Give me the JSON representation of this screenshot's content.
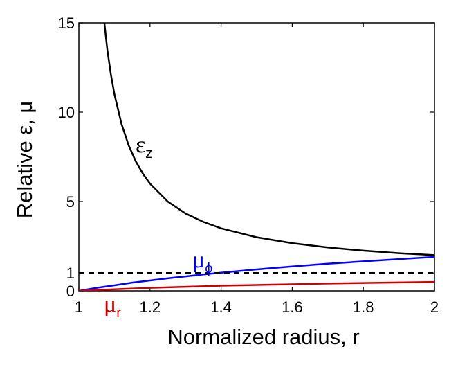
{
  "chart_data": {
    "type": "line",
    "xlabel": "Normalized radius, r",
    "ylabel": "Relative ε, μ",
    "xlim": [
      1,
      2
    ],
    "ylim": [
      0,
      15
    ],
    "x_ticks": [
      "1",
      "1.2",
      "1.4",
      "1.6",
      "1.8",
      "2"
    ],
    "x_tick_values": [
      1,
      1.2,
      1.4,
      1.6,
      1.8,
      2
    ],
    "y_ticks": [
      "0",
      "1",
      "5",
      "10",
      "15"
    ],
    "y_tick_values": [
      0,
      1,
      5,
      10,
      15
    ],
    "grid": false,
    "legend": "none",
    "series": [
      {
        "label_text": "ε",
        "label_sub": "z",
        "color": "#000000",
        "style": "solid",
        "x": [
          1.07,
          1.08,
          1.09,
          1.1,
          1.12,
          1.14,
          1.16,
          1.18,
          1.2,
          1.25,
          1.3,
          1.35,
          1.4,
          1.5,
          1.6,
          1.7,
          1.8,
          1.9,
          2.0
        ],
        "y": [
          15.3,
          13.5,
          12.1,
          11.0,
          9.33,
          8.14,
          7.25,
          6.56,
          6.0,
          5.0,
          4.33,
          3.86,
          3.5,
          3.0,
          2.67,
          2.43,
          2.25,
          2.11,
          2.0
        ]
      },
      {
        "label_text": "μ",
        "label_sub": "ϕ",
        "color": "#0000ff",
        "style": "solid",
        "x": [
          1.0,
          1.05,
          1.1,
          1.15,
          1.2,
          1.25,
          1.3,
          1.35,
          1.4,
          1.5,
          1.6,
          1.7,
          1.8,
          1.9,
          2.0
        ],
        "y": [
          0.0,
          0.17,
          0.31,
          0.46,
          0.58,
          0.7,
          0.81,
          0.92,
          1.02,
          1.2,
          1.37,
          1.52,
          1.65,
          1.78,
          1.9
        ]
      },
      {
        "label_text": "μ",
        "label_sub": "r",
        "color": "#cc0000",
        "style": "solid",
        "x": [
          1.0,
          1.05,
          1.1,
          1.2,
          1.3,
          1.4,
          1.5,
          1.6,
          1.7,
          1.8,
          1.9,
          2.0
        ],
        "y": [
          0.0,
          0.05,
          0.09,
          0.17,
          0.23,
          0.29,
          0.33,
          0.37,
          0.41,
          0.44,
          0.47,
          0.5
        ]
      },
      {
        "color": "#000000",
        "style": "dashed",
        "x": [
          1,
          2
        ],
        "y": [
          1,
          1
        ]
      }
    ]
  }
}
